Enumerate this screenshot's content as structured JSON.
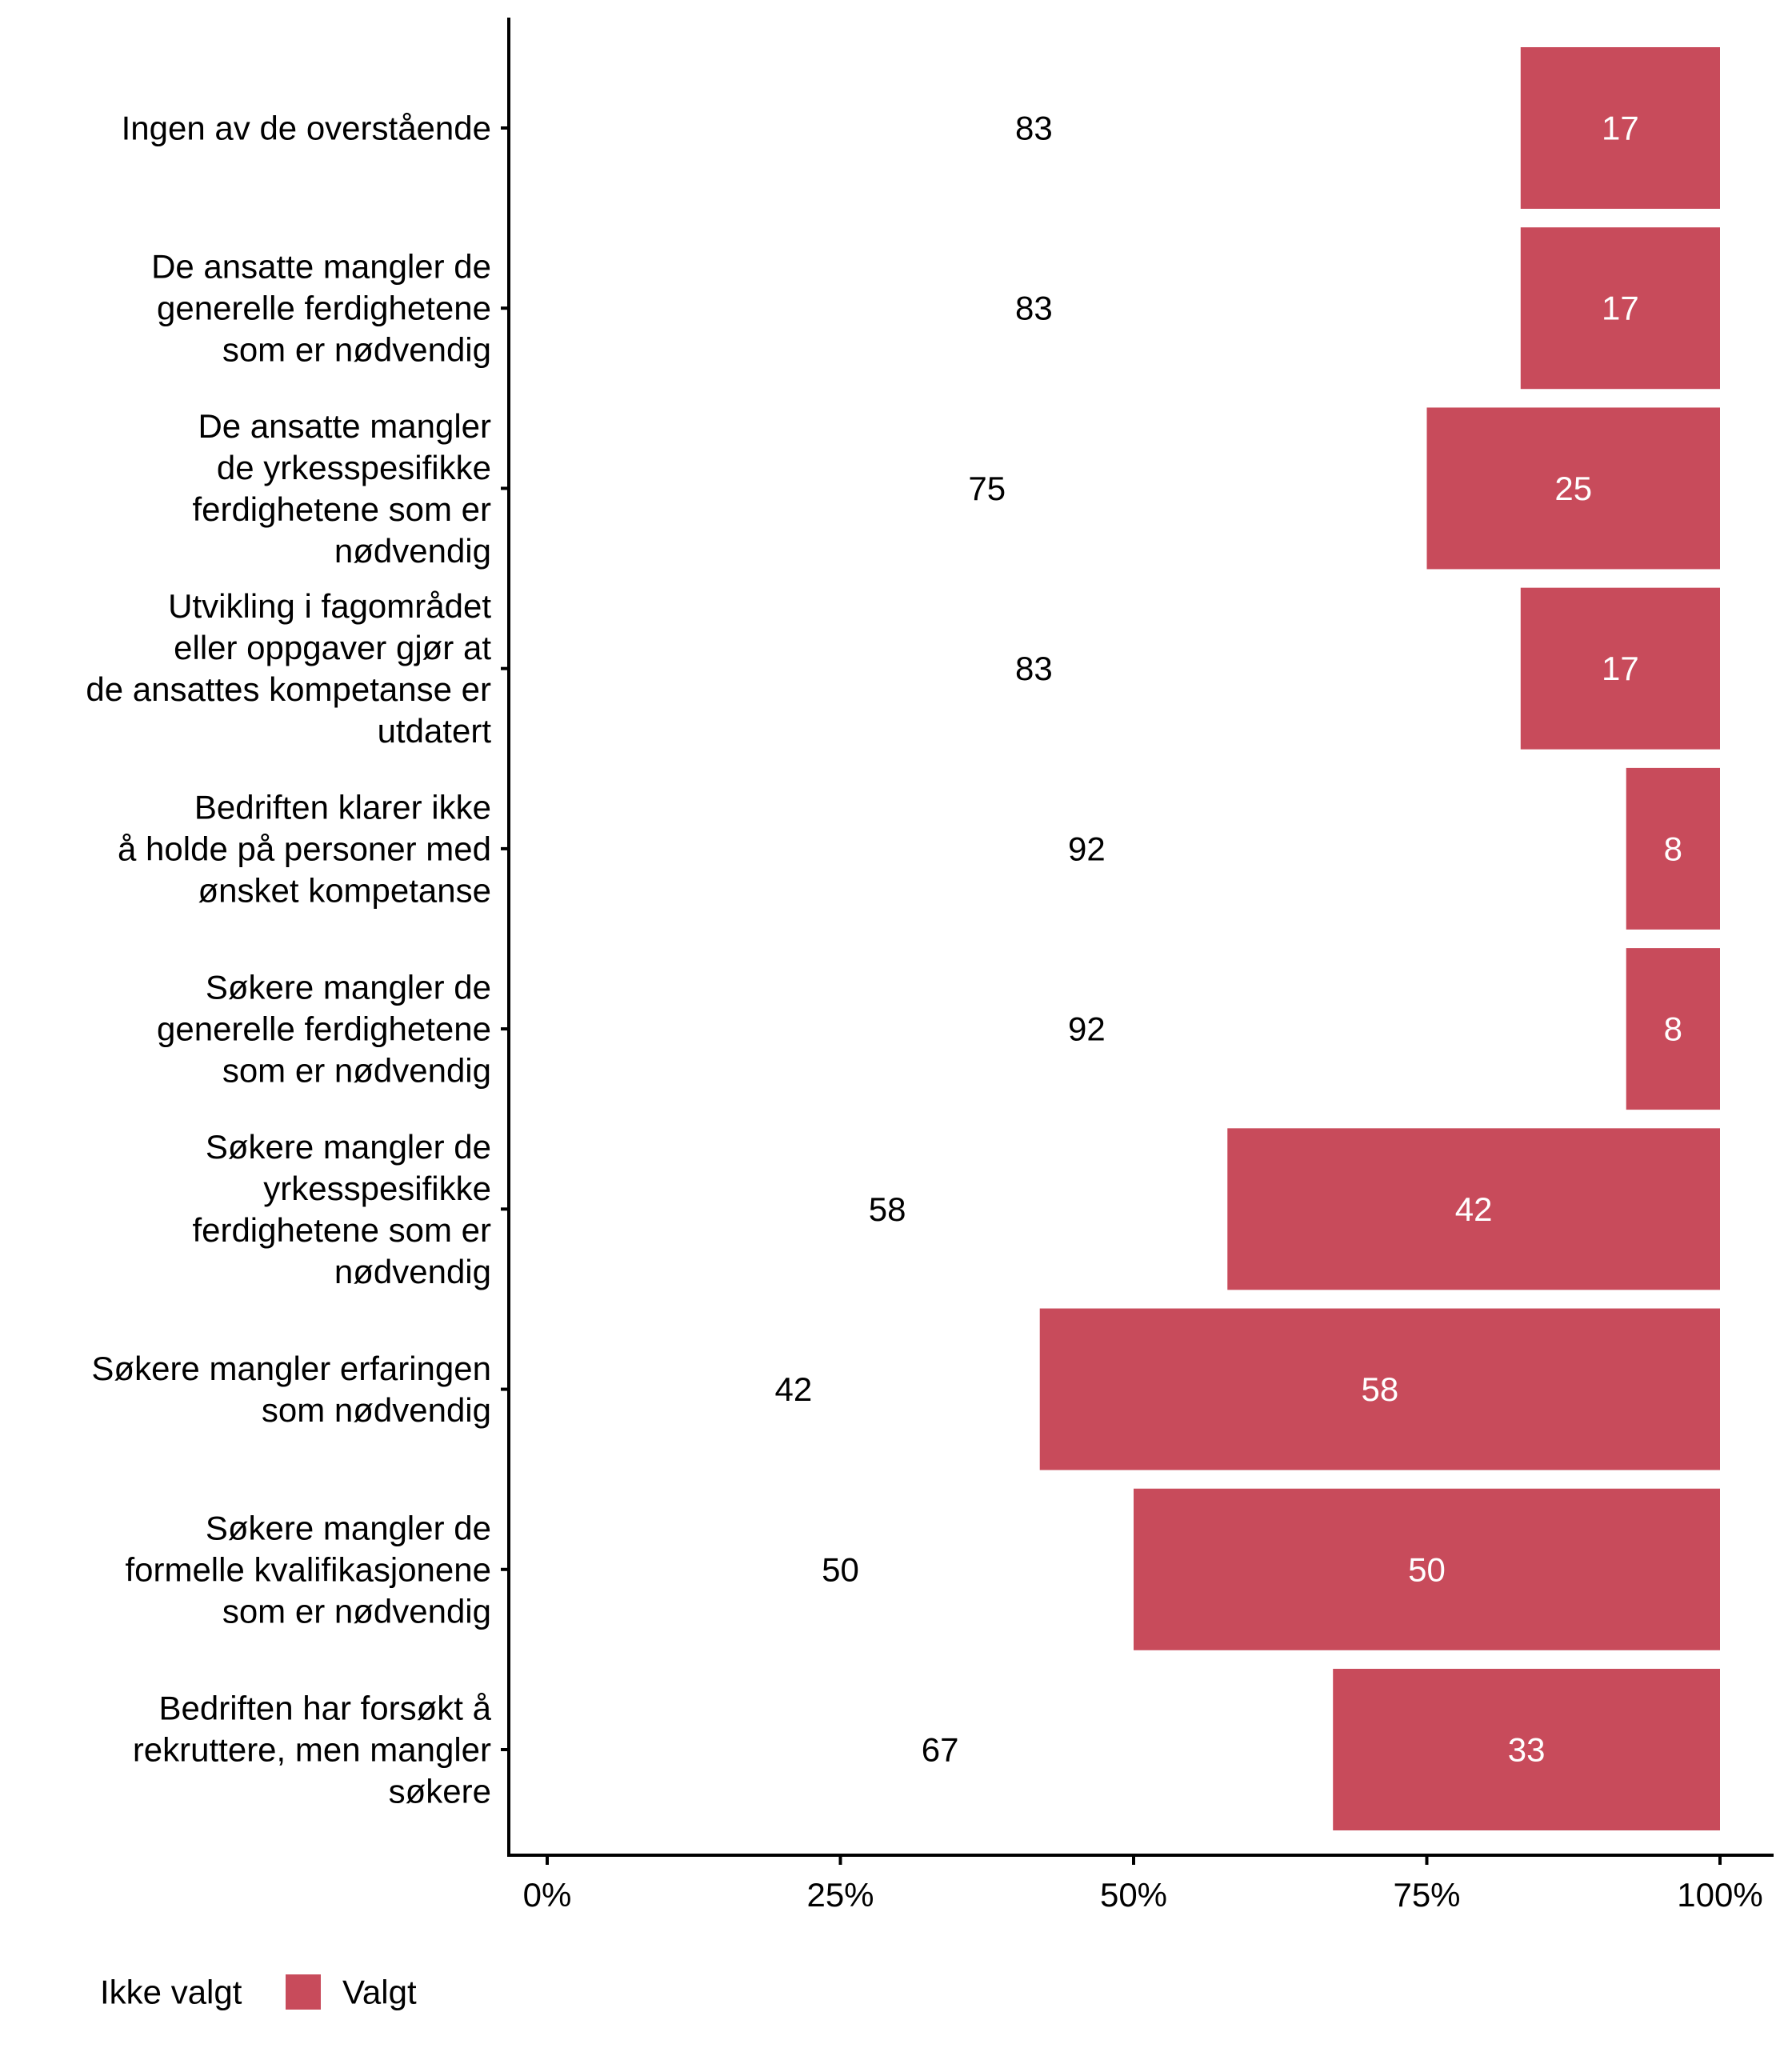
{
  "chart_data": {
    "type": "bar",
    "orientation": "horizontal",
    "stacked": true,
    "percent": true,
    "title": "",
    "xlabel": "",
    "ylabel": "",
    "xlim": [
      0,
      100
    ],
    "x_ticks": [
      "0%",
      "25%",
      "50%",
      "75%",
      "100%"
    ],
    "x_tick_values": [
      0,
      25,
      50,
      75,
      100
    ],
    "grid": false,
    "legend_position": "bottom-left",
    "categories": [
      [
        "Ingen av de overstående"
      ],
      [
        "De ansatte mangler de",
        "generelle ferdighetene",
        "som er nødvendig"
      ],
      [
        "De ansatte mangler",
        "de yrkesspesifikke",
        "ferdighetene som er",
        "nødvendig"
      ],
      [
        "Utvikling i fagområdet",
        "eller oppgaver gjør at",
        "de ansattes kompetanse er",
        "utdatert"
      ],
      [
        "Bedriften klarer ikke",
        "å holde på personer med",
        "ønsket kompetanse"
      ],
      [
        "Søkere mangler de",
        "generelle ferdighetene",
        "som er nødvendig"
      ],
      [
        "Søkere mangler de",
        "yrkesspesifikke",
        "ferdighetene som er",
        "nødvendig"
      ],
      [
        "Søkere mangler erfaringen",
        "som nødvendig"
      ],
      [
        "Søkere mangler de",
        "formelle kvalifikasjonene",
        "som er nødvendig"
      ],
      [
        "Bedriften har forsøkt å",
        "rekruttere, men mangler",
        "søkere"
      ]
    ],
    "series": [
      {
        "name": "Ikke valgt",
        "color": "#ffffff",
        "values": [
          83,
          83,
          75,
          83,
          92,
          92,
          58,
          42,
          50,
          67
        ]
      },
      {
        "name": "Valgt",
        "color": "#C84B5B",
        "values": [
          17,
          17,
          25,
          17,
          8,
          8,
          42,
          58,
          50,
          33
        ]
      }
    ]
  },
  "legend": {
    "items": [
      {
        "label": "Ikke valgt",
        "color": "#ffffff"
      },
      {
        "label": "Valgt",
        "color": "#C84B5B"
      }
    ]
  }
}
